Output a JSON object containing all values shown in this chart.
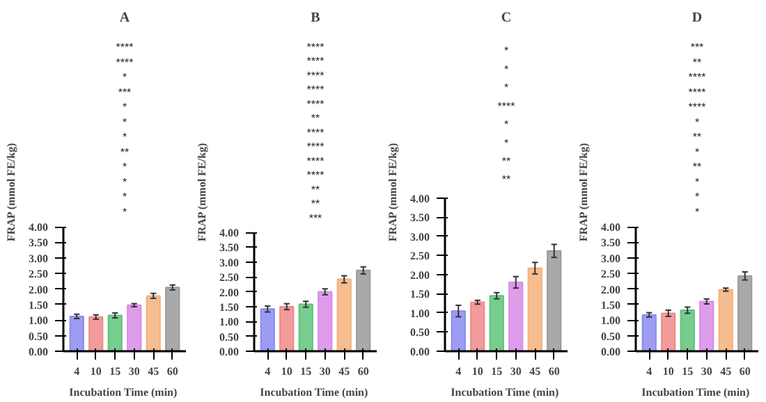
{
  "chart_data": [
    {
      "type": "bar",
      "title": "A",
      "xlabel": "Incubation  Time (min)",
      "ylabel": "FRAP (mmol FE/kg)",
      "categories": [
        "4",
        "10",
        "15",
        "30",
        "45",
        "60"
      ],
      "values": [
        1.12,
        1.1,
        1.15,
        1.48,
        1.78,
        2.05
      ],
      "errors": [
        0.07,
        0.07,
        0.08,
        0.05,
        0.08,
        0.08
      ],
      "colors": [
        "#8b8bf0",
        "#f08a8a",
        "#5ec47a",
        "#d88be8",
        "#f4b27e",
        "#9a9a9a"
      ],
      "ylim": [
        0,
        4
      ],
      "yticks": [
        {
          "value": 0,
          "label": "0.00"
        },
        {
          "value": 0.5,
          "label": "0.50"
        },
        {
          "value": 1,
          "label": "1.00"
        },
        {
          "value": 1.5,
          "label": "1.50"
        },
        {
          "value": 2,
          "label": "2.00"
        },
        {
          "value": 2.5,
          "label": "2.50"
        },
        {
          "value": 3,
          "label": "3.00"
        },
        {
          "value": 3.5,
          "label": "3.50"
        },
        {
          "value": 4,
          "label": "4.00"
        }
      ],
      "grid": false,
      "annotations": [
        "****",
        "****",
        "*",
        "***",
        "*",
        "*",
        "*",
        "**",
        "*",
        "*",
        "*",
        "*"
      ]
    },
    {
      "type": "bar",
      "title": "B",
      "xlabel": "Incubation  Time (min)",
      "ylabel": "FRAP (mmol FE/kg)",
      "categories": [
        "4",
        "10",
        "15",
        "30",
        "45",
        "60"
      ],
      "values": [
        1.42,
        1.5,
        1.58,
        2.0,
        2.42,
        2.72
      ],
      "errors": [
        0.1,
        0.1,
        0.1,
        0.1,
        0.12,
        0.12
      ],
      "colors": [
        "#8b8bf0",
        "#f08a8a",
        "#5ec47a",
        "#d88be8",
        "#f4b27e",
        "#9a9a9a"
      ],
      "ylim": [
        0,
        4
      ],
      "yticks": [
        {
          "value": 0,
          "label": "0.00"
        },
        {
          "value": 0.5,
          "label": "0.50"
        },
        {
          "value": 1,
          "label": "1.00"
        },
        {
          "value": 1.5,
          "label": "1.50"
        },
        {
          "value": 2,
          "label": "2.00"
        },
        {
          "value": 2.5,
          "label": "2.50"
        },
        {
          "value": 3,
          "label": "3.00"
        },
        {
          "value": 3.5,
          "label": "3.50"
        },
        {
          "value": 4,
          "label": "4.00"
        }
      ],
      "grid": false,
      "annotations": [
        "****",
        "****",
        "****",
        "****",
        "****",
        "**",
        "****",
        "****",
        "****",
        "****",
        "**",
        "**",
        "***"
      ]
    },
    {
      "type": "bar",
      "title": "C",
      "xlabel": "Incubation  Time (min)",
      "ylabel": "FRAP (mmol FE/kg)",
      "categories": [
        "4",
        "10",
        "15",
        "30",
        "45",
        "60"
      ],
      "values": [
        1.05,
        1.28,
        1.45,
        1.8,
        2.17,
        2.62
      ],
      "errors": [
        0.15,
        0.05,
        0.08,
        0.15,
        0.15,
        0.17
      ],
      "colors": [
        "#8b8bf0",
        "#f08a8a",
        "#5ec47a",
        "#d88be8",
        "#f4b27e",
        "#9a9a9a"
      ],
      "ylim": [
        0,
        4
      ],
      "yticks": [
        {
          "value": 0,
          "label": "0.00"
        },
        {
          "value": 0.5,
          "label": "0.50"
        },
        {
          "value": 1,
          "label": "1.00"
        },
        {
          "value": 1.5,
          "label": "1.50"
        },
        {
          "value": 2,
          "label": "2.00"
        },
        {
          "value": 2.5,
          "label": "2.50"
        },
        {
          "value": 3,
          "label": "3.00"
        },
        {
          "value": 3.5,
          "label": "3.50"
        },
        {
          "value": 4,
          "label": "4.00"
        }
      ],
      "grid": false,
      "annotations": [
        "*",
        "*",
        "*",
        "****",
        "*",
        "*",
        "**",
        "**"
      ]
    },
    {
      "type": "bar",
      "title": "D",
      "xlabel": "Incubation  Time (min)",
      "ylabel": "FRAP (mmol FE/kg)",
      "categories": [
        "4",
        "10",
        "15",
        "30",
        "45",
        "60"
      ],
      "values": [
        1.17,
        1.22,
        1.32,
        1.6,
        1.98,
        2.42
      ],
      "errors": [
        0.07,
        0.1,
        0.1,
        0.08,
        0.05,
        0.13
      ],
      "colors": [
        "#8b8bf0",
        "#f08a8a",
        "#5ec47a",
        "#d88be8",
        "#f4b27e",
        "#9a9a9a"
      ],
      "ylim": [
        0,
        4
      ],
      "yticks": [
        {
          "value": 0,
          "label": "0.00"
        },
        {
          "value": 0.5,
          "label": "0.50"
        },
        {
          "value": 1,
          "label": "1.00"
        },
        {
          "value": 1.5,
          "label": "1.50"
        },
        {
          "value": 2,
          "label": "2.00"
        },
        {
          "value": 2.5,
          "label": "2.50"
        },
        {
          "value": 3,
          "label": "3.00"
        },
        {
          "value": 3.5,
          "label": "3.50"
        },
        {
          "value": 4,
          "label": "4.00"
        }
      ],
      "grid": false,
      "annotations": [
        "***",
        "**",
        "****",
        "****",
        "****",
        "*",
        "**",
        "*",
        "**",
        "*",
        "*",
        "*"
      ]
    }
  ]
}
